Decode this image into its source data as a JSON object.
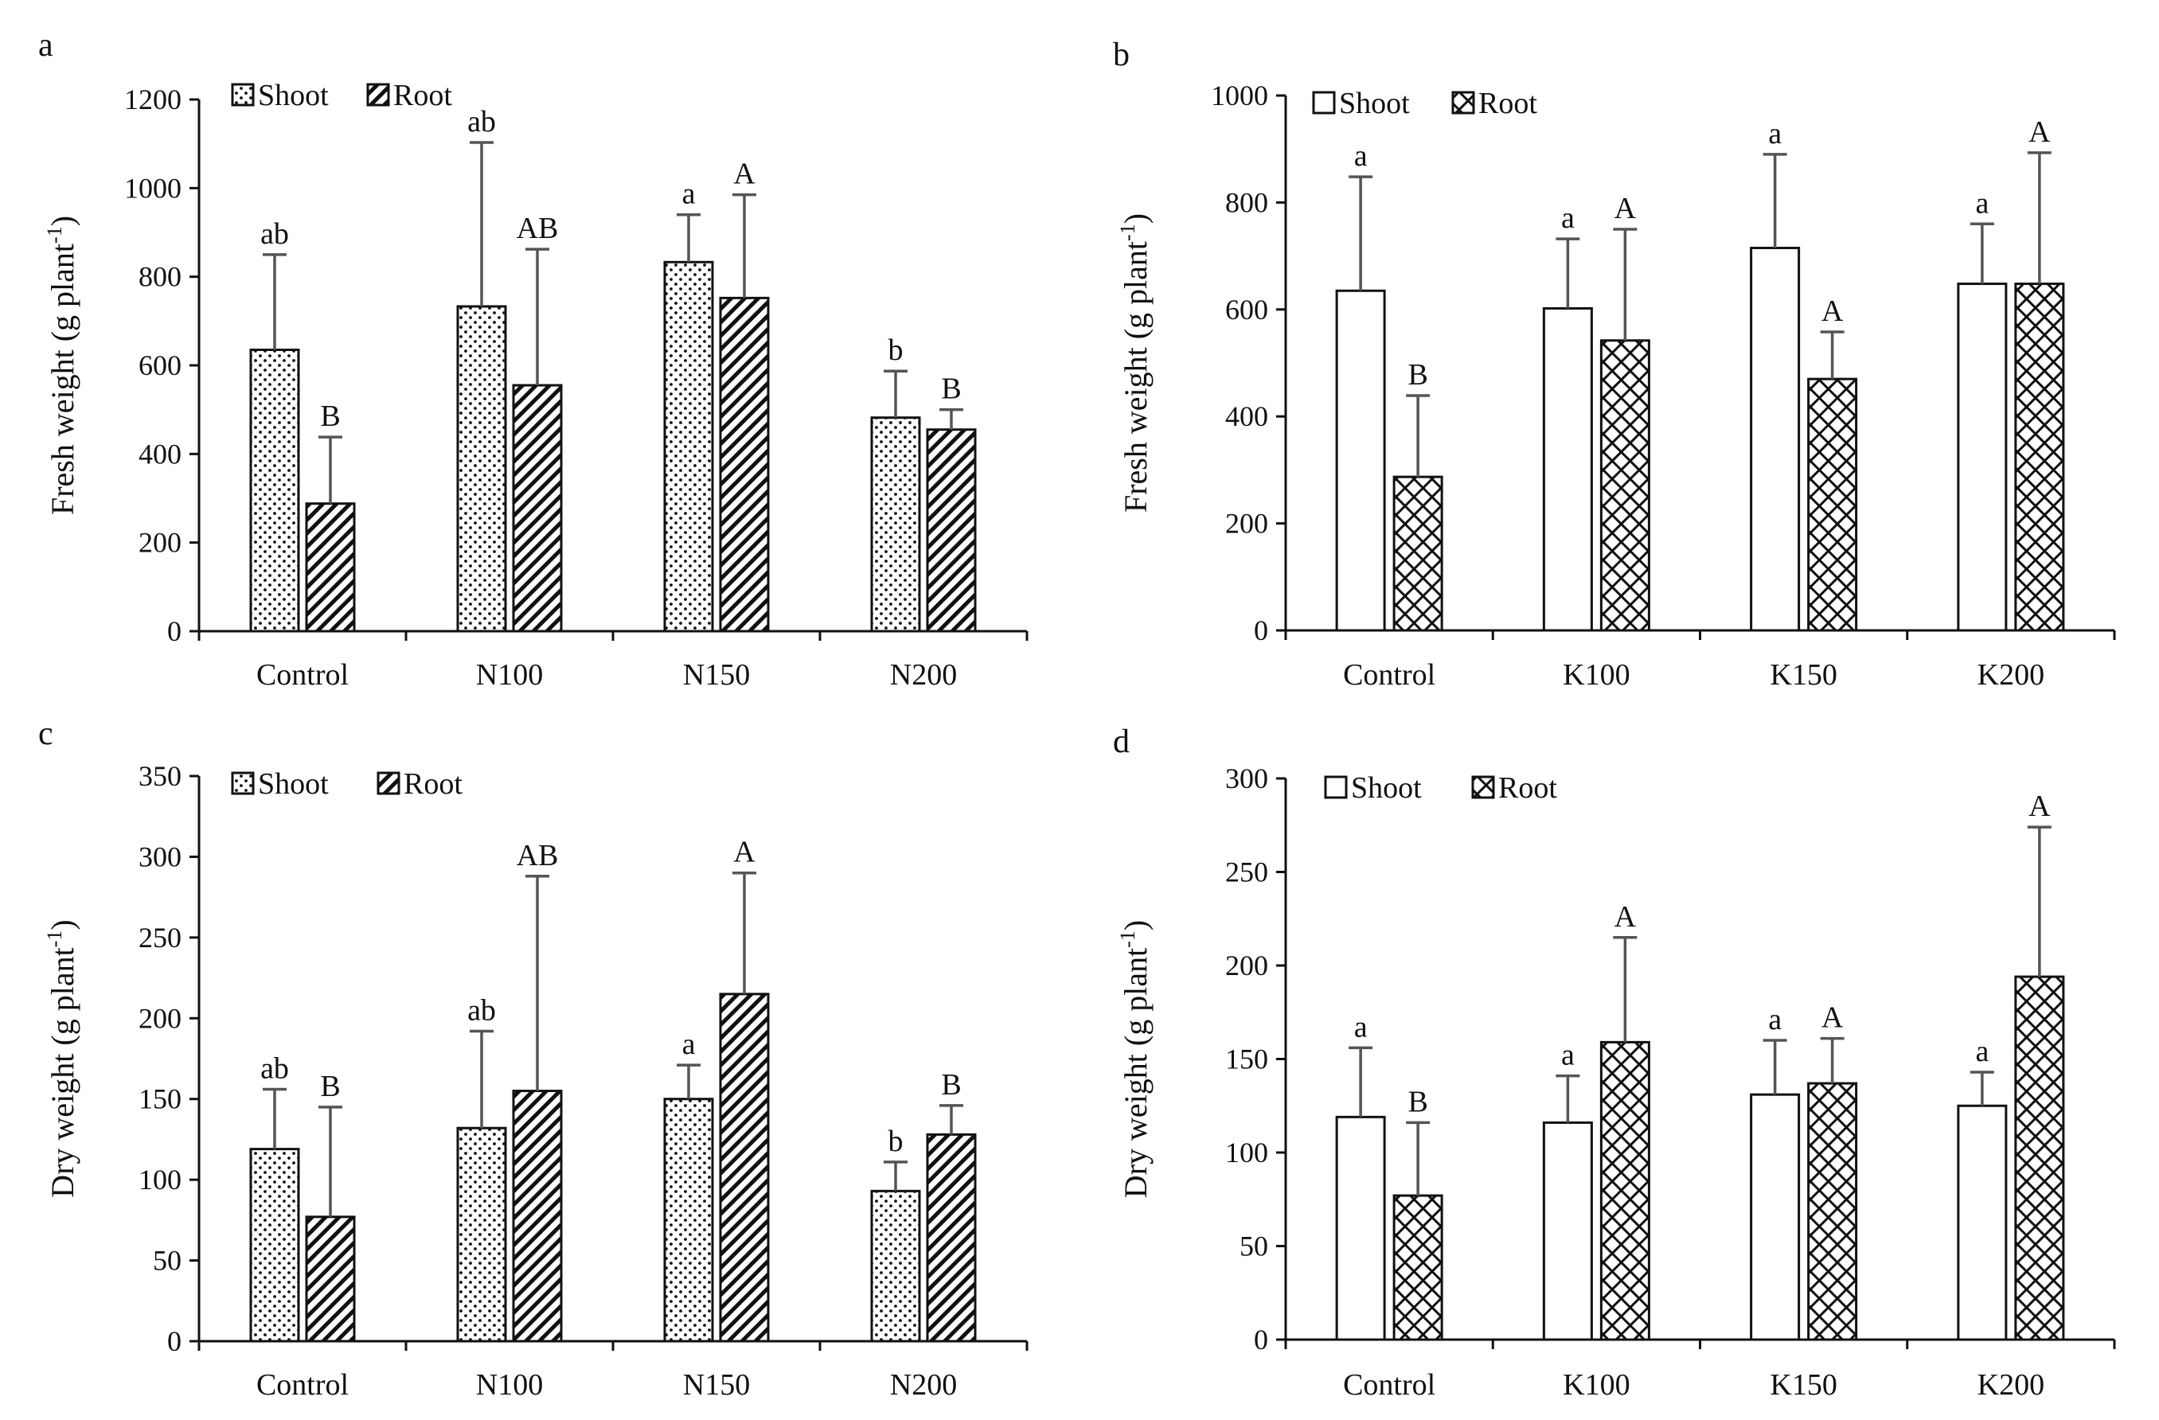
{
  "chart_data": [
    {
      "panel": "a",
      "type": "bar",
      "ylabel": "Fresh weight (g plant",
      "ylabel_sup": "-1",
      "ylabel_tail": ")",
      "ylim": [
        0,
        1200
      ],
      "yticks": [
        0,
        200,
        400,
        600,
        800,
        1000,
        1200
      ],
      "categories": [
        "Control",
        "N100",
        "N150",
        "N200"
      ],
      "series": [
        {
          "name": "Shoot",
          "pattern": "dots",
          "values": [
            635,
            733,
            833,
            482
          ],
          "errors": [
            215,
            370,
            107,
            105
          ],
          "labels": [
            "ab",
            "ab",
            "a",
            "b"
          ]
        },
        {
          "name": "Root",
          "pattern": "hatch",
          "values": [
            288,
            555,
            752,
            455
          ],
          "errors": [
            150,
            307,
            233,
            45
          ],
          "labels": [
            "B",
            "AB",
            "A",
            "B"
          ]
        }
      ]
    },
    {
      "panel": "b",
      "type": "bar",
      "ylabel": "Fresh weight (g plant",
      "ylabel_sup": "-1",
      "ylabel_tail": ")",
      "ylim": [
        0,
        1000
      ],
      "yticks": [
        0,
        200,
        400,
        600,
        800,
        1000
      ],
      "categories": [
        "Control",
        "K100",
        "K150",
        "K200"
      ],
      "series": [
        {
          "name": "Shoot",
          "pattern": "white",
          "values": [
            635,
            602,
            715,
            648
          ],
          "errors": [
            213,
            130,
            175,
            112
          ],
          "labels": [
            "a",
            "a",
            "a",
            "a"
          ]
        },
        {
          "name": "Root",
          "pattern": "crosshatch",
          "values": [
            287,
            542,
            470,
            648
          ],
          "errors": [
            152,
            208,
            88,
            245
          ],
          "labels": [
            "B",
            "A",
            "A",
            "A"
          ]
        }
      ]
    },
    {
      "panel": "c",
      "type": "bar",
      "ylabel": "Dry weight (g plant",
      "ylabel_sup": "-1",
      "ylabel_tail": ")",
      "ylim": [
        0,
        350
      ],
      "yticks": [
        0,
        50,
        100,
        150,
        200,
        250,
        300,
        350
      ],
      "categories": [
        "Control",
        "N100",
        "N150",
        "N200"
      ],
      "series": [
        {
          "name": "Shoot",
          "pattern": "dots",
          "values": [
            119,
            132,
            150,
            93
          ],
          "errors": [
            37,
            60,
            21,
            18
          ],
          "labels": [
            "ab",
            "ab",
            "a",
            "b"
          ]
        },
        {
          "name": "Root",
          "pattern": "hatch",
          "values": [
            77,
            155,
            215,
            128
          ],
          "errors": [
            68,
            133,
            75,
            18
          ],
          "labels": [
            "B",
            "AB",
            "A",
            "B"
          ]
        }
      ]
    },
    {
      "panel": "d",
      "type": "bar",
      "ylabel": "Dry weight (g plant",
      "ylabel_sup": "-1",
      "ylabel_tail": ")",
      "ylim": [
        0,
        300
      ],
      "yticks": [
        0,
        50,
        100,
        150,
        200,
        250,
        300
      ],
      "categories": [
        "Control",
        "K100",
        "K150",
        "K200"
      ],
      "series": [
        {
          "name": "Shoot",
          "pattern": "white",
          "values": [
            119,
            116,
            131,
            125
          ],
          "errors": [
            37,
            25,
            29,
            18
          ],
          "labels": [
            "a",
            "a",
            "a",
            "a"
          ]
        },
        {
          "name": "Root",
          "pattern": "crosshatch",
          "values": [
            77,
            159,
            137,
            194
          ],
          "errors": [
            39,
            56,
            24,
            80
          ],
          "labels": [
            "B",
            "A",
            "A",
            "A"
          ]
        }
      ]
    }
  ]
}
